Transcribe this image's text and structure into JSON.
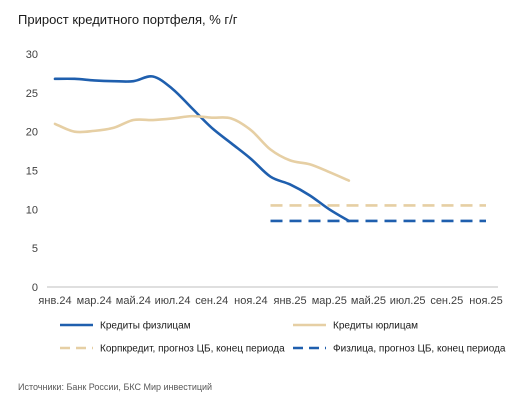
{
  "chart_data": {
    "type": "line",
    "title": "Прирост кредитного портфеля, % г/г",
    "source": "Источники: Банк России, БКС Мир инвестиций",
    "xlabel": "",
    "ylabel": "",
    "ylim": [
      0,
      30
    ],
    "yticks": [
      0,
      5,
      10,
      15,
      20,
      25,
      30
    ],
    "categories": [
      "янв.24",
      "мар.24",
      "май.24",
      "июл.24",
      "сен.24",
      "ноя.24",
      "янв.25",
      "мар.25",
      "май.25",
      "июл.25",
      "сен.25",
      "ноя.25"
    ],
    "grid": false,
    "legend_position": "bottom",
    "series": [
      {
        "name": "Кредиты физлицам",
        "color": "#1f5fae",
        "style": "solid",
        "x": [
          "2024-01",
          "2024-02",
          "2024-03",
          "2024-04",
          "2024-05",
          "2024-06",
          "2024-07",
          "2024-08",
          "2024-09",
          "2024-10",
          "2024-11",
          "2024-12",
          "2025-01",
          "2025-02",
          "2025-03",
          "2025-04"
        ],
        "values": [
          26.8,
          26.8,
          26.6,
          26.5,
          26.5,
          27.1,
          25.5,
          23.0,
          20.5,
          18.5,
          16.5,
          14.2,
          13.2,
          11.8,
          10.0,
          8.5
        ]
      },
      {
        "name": "Кредиты юрлицам",
        "color": "#e6cfa4",
        "style": "solid",
        "x": [
          "2024-01",
          "2024-02",
          "2024-03",
          "2024-04",
          "2024-05",
          "2024-06",
          "2024-07",
          "2024-08",
          "2024-09",
          "2024-10",
          "2024-11",
          "2024-12",
          "2025-01",
          "2025-02",
          "2025-03",
          "2025-04"
        ],
        "values": [
          21.0,
          20.0,
          20.1,
          20.5,
          21.5,
          21.5,
          21.7,
          22.0,
          21.8,
          21.7,
          20.2,
          17.7,
          16.3,
          15.8,
          14.8,
          13.7
        ]
      },
      {
        "name": "Корпкредит, прогноз ЦБ, конец периода",
        "color": "#e6cfa4",
        "style": "dashed",
        "x": [
          "2024-12",
          "2025-11"
        ],
        "values": [
          10.5,
          10.5
        ]
      },
      {
        "name": "Физлица, прогноз ЦБ, конец периода",
        "color": "#1f5fae",
        "style": "dashed",
        "x": [
          "2024-12",
          "2025-11"
        ],
        "values": [
          8.5,
          8.5
        ]
      }
    ]
  }
}
